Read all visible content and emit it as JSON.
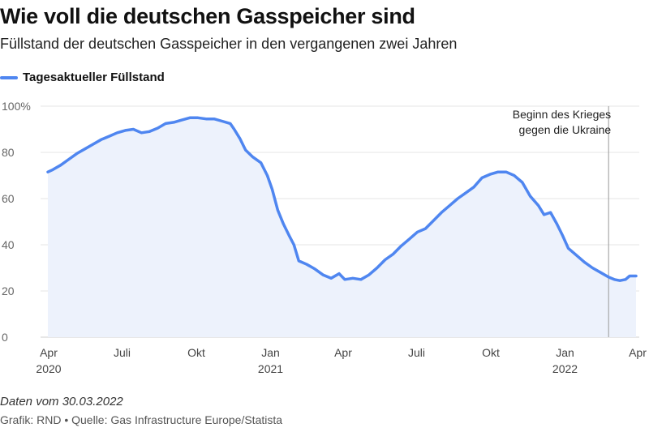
{
  "header": {
    "title": "Wie voll die deutschen Gasspeicher sind",
    "subtitle": "Füllstand der deutschen Gasspeicher in den vergangenen zwei Jahren"
  },
  "footer": {
    "note": "Daten vom 30.03.2022",
    "source": "Grafik: RND • Quelle: Gas Infrastructure Europe/Statista"
  },
  "colors": {
    "line": "#4f86f0",
    "fill": "#edf2fc",
    "grid": "#e6e6e6",
    "marker": "#999999"
  },
  "chart_data": {
    "type": "area",
    "title": "Wie voll die deutschen Gasspeicher sind",
    "subtitle": "Füllstand der deutschen Gasspeicher in den vergangenen zwei Jahren",
    "xlabel": "",
    "ylabel": "",
    "ylim": [
      0,
      100
    ],
    "xlim": [
      "2020-03-31",
      "2022-03-30"
    ],
    "y_ticks": [
      {
        "value": 0,
        "label": "0"
      },
      {
        "value": 20,
        "label": "20"
      },
      {
        "value": 40,
        "label": "40"
      },
      {
        "value": 60,
        "label": "60"
      },
      {
        "value": 80,
        "label": "80"
      },
      {
        "value": 100,
        "label": "100%"
      }
    ],
    "x_ticks": [
      {
        "date": "2020-04-01",
        "label": "Apr",
        "year": "2020"
      },
      {
        "date": "2020-07-01",
        "label": "Juli",
        "year": ""
      },
      {
        "date": "2020-10-01",
        "label": "Okt",
        "year": ""
      },
      {
        "date": "2021-01-01",
        "label": "Jan",
        "year": "2021"
      },
      {
        "date": "2021-04-01",
        "label": "Apr",
        "year": ""
      },
      {
        "date": "2021-07-01",
        "label": "Juli",
        "year": ""
      },
      {
        "date": "2021-10-01",
        "label": "Okt",
        "year": ""
      },
      {
        "date": "2022-01-01",
        "label": "Jan",
        "year": "2022"
      },
      {
        "date": "2022-04-01",
        "label": "Apr",
        "year": ""
      }
    ],
    "grid": true,
    "legend": "top-left",
    "annotations": [
      {
        "date": "2022-02-24",
        "text": [
          "Beginn des Krieges",
          "gegen die Ukraine"
        ]
      }
    ],
    "series": [
      {
        "name": "Tagesaktueller Füllstand",
        "points": [
          [
            "2020-03-31",
            71.5
          ],
          [
            "2020-04-06",
            72.5
          ],
          [
            "2020-04-16",
            74.5
          ],
          [
            "2020-04-26",
            77
          ],
          [
            "2020-05-06",
            79.5
          ],
          [
            "2020-05-16",
            81.5
          ],
          [
            "2020-05-26",
            83.5
          ],
          [
            "2020-06-05",
            85.5
          ],
          [
            "2020-06-15",
            87
          ],
          [
            "2020-06-25",
            88.5
          ],
          [
            "2020-07-05",
            89.5
          ],
          [
            "2020-07-15",
            90
          ],
          [
            "2020-07-25",
            88.5
          ],
          [
            "2020-08-04",
            89
          ],
          [
            "2020-08-14",
            90.5
          ],
          [
            "2020-08-24",
            92.5
          ],
          [
            "2020-09-03",
            93
          ],
          [
            "2020-09-13",
            94
          ],
          [
            "2020-09-23",
            95
          ],
          [
            "2020-10-03",
            95
          ],
          [
            "2020-10-13",
            94.5
          ],
          [
            "2020-10-23",
            94.5
          ],
          [
            "2020-11-02",
            93.5
          ],
          [
            "2020-11-12",
            92.5
          ],
          [
            "2020-11-17",
            90
          ],
          [
            "2020-11-24",
            86
          ],
          [
            "2020-12-01",
            81
          ],
          [
            "2020-12-10",
            78
          ],
          [
            "2020-12-20",
            75.5
          ],
          [
            "2020-12-28",
            70
          ],
          [
            "2021-01-03",
            64
          ],
          [
            "2021-01-10",
            55
          ],
          [
            "2021-01-17",
            49
          ],
          [
            "2021-01-24",
            44
          ],
          [
            "2021-01-30",
            40
          ],
          [
            "2021-02-05",
            33
          ],
          [
            "2021-02-15",
            31.5
          ],
          [
            "2021-02-25",
            29.5
          ],
          [
            "2021-03-07",
            27
          ],
          [
            "2021-03-17",
            25.5
          ],
          [
            "2021-03-27",
            27.5
          ],
          [
            "2021-04-03",
            25
          ],
          [
            "2021-04-13",
            25.5
          ],
          [
            "2021-04-23",
            25
          ],
          [
            "2021-05-03",
            27
          ],
          [
            "2021-05-13",
            30
          ],
          [
            "2021-05-23",
            33.5
          ],
          [
            "2021-06-02",
            36
          ],
          [
            "2021-06-12",
            39.5
          ],
          [
            "2021-06-22",
            42.5
          ],
          [
            "2021-07-02",
            45.5
          ],
          [
            "2021-07-12",
            47
          ],
          [
            "2021-07-22",
            50.5
          ],
          [
            "2021-08-01",
            54
          ],
          [
            "2021-08-11",
            57
          ],
          [
            "2021-08-21",
            60
          ],
          [
            "2021-08-31",
            62.5
          ],
          [
            "2021-09-10",
            65
          ],
          [
            "2021-09-20",
            69
          ],
          [
            "2021-09-30",
            70.5
          ],
          [
            "2021-10-10",
            71.5
          ],
          [
            "2021-10-20",
            71.5
          ],
          [
            "2021-10-30",
            70
          ],
          [
            "2021-11-09",
            67
          ],
          [
            "2021-11-19",
            61
          ],
          [
            "2021-11-29",
            57
          ],
          [
            "2021-12-06",
            53
          ],
          [
            "2021-12-14",
            54
          ],
          [
            "2021-12-22",
            49
          ],
          [
            "2021-12-29",
            44
          ],
          [
            "2022-01-05",
            38.5
          ],
          [
            "2022-01-15",
            35.5
          ],
          [
            "2022-01-25",
            32.5
          ],
          [
            "2022-02-04",
            30
          ],
          [
            "2022-02-14",
            28
          ],
          [
            "2022-02-24",
            26
          ],
          [
            "2022-03-03",
            25
          ],
          [
            "2022-03-10",
            24.5
          ],
          [
            "2022-03-17",
            25
          ],
          [
            "2022-03-22",
            26.5
          ],
          [
            "2022-03-30",
            26.5
          ]
        ]
      }
    ]
  }
}
